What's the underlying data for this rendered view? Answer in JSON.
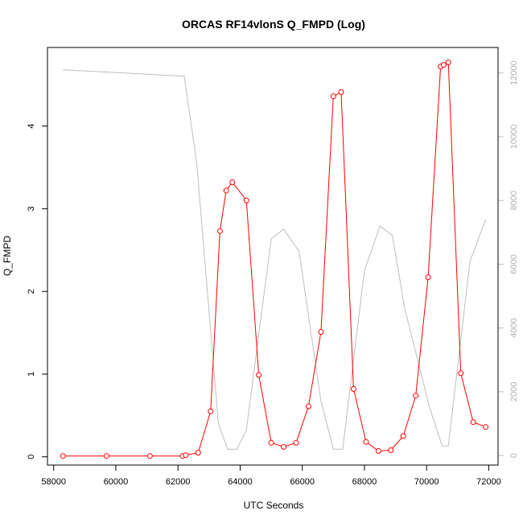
{
  "chart_data": {
    "type": "line",
    "title": "ORCAS RF14vlonS Q_FMPD (Log)",
    "xlabel": "UTC Seconds",
    "ylabel": "Q_FMPD",
    "xlim": [
      57800,
      72300
    ],
    "ylim": [
      -0.1,
      4.95
    ],
    "y2lim": [
      -300,
      12800
    ],
    "x_ticks": [
      58000,
      60000,
      62000,
      64000,
      66000,
      68000,
      70000,
      72000
    ],
    "y_ticks": [
      0,
      1,
      2,
      3,
      4
    ],
    "y2_ticks": [
      0,
      2000,
      4000,
      6000,
      8000,
      10000,
      12000
    ],
    "colors": {
      "primary": "#ff0000",
      "secondary": "#bebebe"
    },
    "series": [
      {
        "axis": "left",
        "style": "line+points",
        "x": [
          58300,
          59700,
          61100,
          62150,
          62250,
          62650,
          63050,
          63350,
          63550,
          63750,
          64200,
          64600,
          65000,
          65400,
          65800,
          66200,
          66600,
          67000,
          67250,
          67650,
          68050,
          68450,
          68850,
          69250,
          69650,
          70050,
          70450,
          70550,
          70700,
          71100,
          71500,
          71900
        ],
        "values": [
          0.01,
          0.01,
          0.01,
          0.01,
          0.02,
          0.05,
          0.55,
          2.73,
          3.22,
          3.32,
          3.1,
          0.99,
          0.17,
          0.12,
          0.17,
          0.61,
          1.51,
          4.36,
          4.41,
          0.82,
          0.18,
          0.07,
          0.08,
          0.25,
          0.74,
          2.17,
          4.72,
          4.74,
          4.77,
          1.01,
          0.42,
          0.36
        ]
      },
      {
        "axis": "right",
        "style": "line",
        "x": [
          58300,
          62200,
          62600,
          63300,
          63600,
          63900,
          64200,
          65000,
          65400,
          65900,
          66600,
          67000,
          67300,
          68000,
          68500,
          68900,
          69300,
          70100,
          70500,
          70700,
          71400,
          71900
        ],
        "values": [
          12100,
          11900,
          9200,
          1000,
          200,
          200,
          800,
          6800,
          7100,
          6400,
          1700,
          200,
          200,
          5800,
          7200,
          6900,
          4600,
          1500,
          300,
          300,
          6100,
          7400
        ]
      }
    ]
  }
}
